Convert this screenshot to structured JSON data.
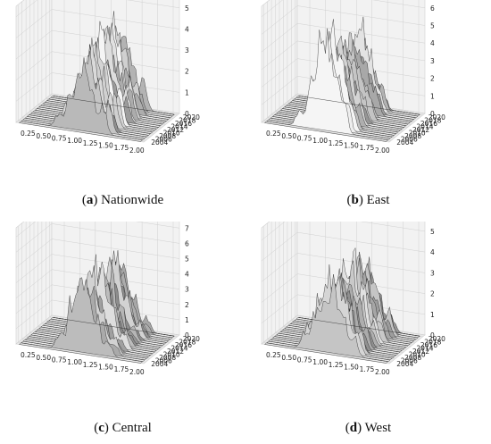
{
  "chart_data": [
    {
      "type": "surface3d",
      "panel_label": "a",
      "caption": "Nationwide",
      "x_ticks": [
        "0.25",
        "0.50",
        "0.75",
        "1.00",
        "1.25",
        "1.50",
        "1.75",
        "2.00"
      ],
      "y_ticks": [
        "2004",
        "2006",
        "2008",
        "2010",
        "2012",
        "2014",
        "2016",
        "2018",
        "2020"
      ],
      "z_ticks": [
        "0",
        "1",
        "2",
        "3",
        "4",
        "5"
      ],
      "xlim": [
        0.05,
        2.1
      ],
      "ylim": [
        2003,
        2021
      ],
      "zlim": [
        0,
        5.5
      ],
      "peaks": [
        {
          "x": 0.78,
          "value": 1.2
        },
        {
          "x": 0.95,
          "value": 2.6
        },
        {
          "x": 1.08,
          "value": 4.4
        },
        {
          "x": 1.2,
          "value": 5.0
        },
        {
          "x": 1.33,
          "value": 3.6
        },
        {
          "x": 1.5,
          "value": 2.3
        }
      ]
    },
    {
      "type": "surface3d",
      "panel_label": "b",
      "caption": "East",
      "x_ticks": [
        "0.25",
        "0.50",
        "0.75",
        "1.00",
        "1.25",
        "1.50",
        "1.75",
        "2.00"
      ],
      "y_ticks": [
        "2004",
        "2006",
        "2008",
        "2010",
        "2012",
        "2014",
        "2016",
        "2018",
        "2020"
      ],
      "z_ticks": [
        "0",
        "1",
        "2",
        "3",
        "4",
        "5",
        "6"
      ],
      "xlim": [
        0.05,
        2.1
      ],
      "ylim": [
        2003,
        2021
      ],
      "zlim": [
        0,
        6.6
      ],
      "peaks": [
        {
          "x": 0.7,
          "value": 1.0
        },
        {
          "x": 0.88,
          "value": 3.0
        },
        {
          "x": 1.02,
          "value": 5.4
        },
        {
          "x": 1.15,
          "value": 6.2
        },
        {
          "x": 1.28,
          "value": 4.0
        },
        {
          "x": 1.42,
          "value": 2.2
        }
      ]
    },
    {
      "type": "surface3d",
      "panel_label": "c",
      "caption": "Central",
      "x_ticks": [
        "0.25",
        "0.50",
        "0.75",
        "1.00",
        "1.25",
        "1.50",
        "1.75",
        "2.00"
      ],
      "y_ticks": [
        "2004",
        "2006",
        "2008",
        "2010",
        "2012",
        "2014",
        "2016",
        "2018",
        "2020"
      ],
      "z_ticks": [
        "0",
        "1",
        "2",
        "3",
        "4",
        "5",
        "6",
        "7"
      ],
      "xlim": [
        0.05,
        2.1
      ],
      "ylim": [
        2003,
        2021
      ],
      "zlim": [
        0,
        7.6
      ],
      "peaks": [
        {
          "x": 0.8,
          "value": 1.5
        },
        {
          "x": 0.98,
          "value": 4.4
        },
        {
          "x": 1.12,
          "value": 6.4
        },
        {
          "x": 1.25,
          "value": 5.8
        },
        {
          "x": 1.4,
          "value": 3.2
        },
        {
          "x": 1.58,
          "value": 1.4
        }
      ]
    },
    {
      "type": "surface3d",
      "panel_label": "d",
      "caption": "West",
      "x_ticks": [
        "0.25",
        "0.50",
        "0.75",
        "1.00",
        "1.25",
        "1.50",
        "1.75",
        "2.00"
      ],
      "y_ticks": [
        "2004",
        "2006",
        "2008",
        "2010",
        "2012",
        "2014",
        "2016",
        "2018",
        "2020"
      ],
      "z_ticks": [
        "0",
        "1",
        "2",
        "3",
        "4",
        "5"
      ],
      "xlim": [
        0.05,
        2.1
      ],
      "ylim": [
        2003,
        2021
      ],
      "zlim": [
        0,
        5.6
      ],
      "peaks": [
        {
          "x": 0.78,
          "value": 1.4
        },
        {
          "x": 0.95,
          "value": 3.0
        },
        {
          "x": 1.1,
          "value": 4.6
        },
        {
          "x": 1.25,
          "value": 4.9
        },
        {
          "x": 1.4,
          "value": 3.4
        },
        {
          "x": 1.58,
          "value": 1.6
        }
      ]
    }
  ],
  "colors": {
    "pane": "#f2f2f2",
    "grid": "#d0d0d0",
    "surface_low": "#1a1a1a",
    "surface_high": "#f5f5f5"
  }
}
